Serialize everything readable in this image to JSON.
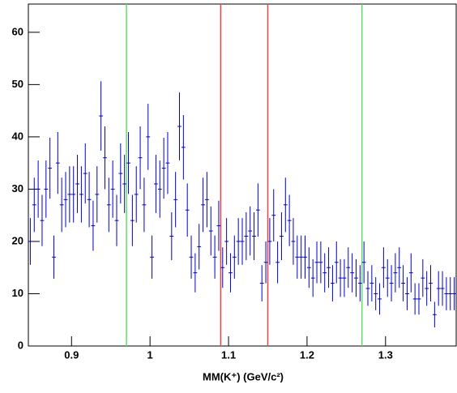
{
  "chart_data": {
    "type": "histogram",
    "x_label": "MM(K⁺) (GeV/c²)",
    "bins": [
      0.845,
      0.85,
      0.855,
      0.86,
      0.865,
      0.87,
      0.875,
      0.88,
      0.885,
      0.89,
      0.895,
      0.9,
      0.905,
      0.91,
      0.915,
      0.92,
      0.925,
      0.93,
      0.935,
      0.94,
      0.945,
      0.95,
      0.955,
      0.96,
      0.965,
      0.97,
      0.975,
      0.98,
      0.985,
      0.99,
      0.995,
      1.0,
      1.005,
      1.01,
      1.015,
      1.02,
      1.025,
      1.03,
      1.035,
      1.04,
      1.045,
      1.05,
      1.055,
      1.06,
      1.065,
      1.07,
      1.075,
      1.08,
      1.085,
      1.09,
      1.095,
      1.1,
      1.105,
      1.11,
      1.115,
      1.12,
      1.125,
      1.13,
      1.135,
      1.14,
      1.145,
      1.15,
      1.155,
      1.16,
      1.165,
      1.17,
      1.175,
      1.18,
      1.185,
      1.19,
      1.195,
      1.2,
      1.205,
      1.21,
      1.215,
      1.22,
      1.225,
      1.23,
      1.235,
      1.24,
      1.245,
      1.25,
      1.255,
      1.26,
      1.265,
      1.27,
      1.275,
      1.28,
      1.285,
      1.29,
      1.295,
      1.3,
      1.305,
      1.31,
      1.315,
      1.32,
      1.325,
      1.33,
      1.335,
      1.34,
      1.345,
      1.35,
      1.355,
      1.36,
      1.365,
      1.37,
      1.375,
      1.38,
      1.385,
      1.39
    ],
    "values": [
      20,
      27,
      30,
      24,
      30,
      34,
      17,
      35,
      27,
      28,
      29,
      29,
      31,
      29,
      33,
      28,
      23,
      29,
      44,
      36,
      27,
      30,
      24,
      33,
      31,
      35,
      24,
      29,
      36,
      27,
      40,
      17,
      31,
      30,
      34,
      35,
      21,
      28,
      42,
      38,
      26,
      17,
      14,
      19,
      27,
      28,
      22,
      17,
      23,
      15,
      20,
      14,
      17,
      20,
      20,
      21,
      22,
      21,
      26,
      12,
      16,
      20,
      25,
      16,
      21,
      27,
      24,
      20,
      17,
      17,
      17,
      15,
      13,
      16,
      16,
      14,
      15,
      12,
      16,
      13,
      13,
      15,
      14,
      13,
      12,
      16,
      11,
      12,
      10,
      9,
      15,
      13,
      12,
      14,
      15,
      12,
      10,
      14,
      9,
      9,
      13,
      11,
      12,
      6,
      11,
      11,
      10,
      10,
      10
    ],
    "color": "#0000cc",
    "xlim": [
      0.845,
      1.39
    ],
    "xticks": [
      0.9,
      1,
      1.1,
      1.2,
      1.3
    ],
    "ylim": [
      0,
      65.4
    ],
    "yticks": [
      0,
      10,
      20,
      30,
      40,
      50,
      60
    ],
    "vlines": [
      {
        "x": 0.97,
        "color": "#66dd66"
      },
      {
        "x": 1.09,
        "color": "#ee4444"
      },
      {
        "x": 1.15,
        "color": "#ee4444"
      },
      {
        "x": 1.27,
        "color": "#66dd66"
      }
    ]
  }
}
